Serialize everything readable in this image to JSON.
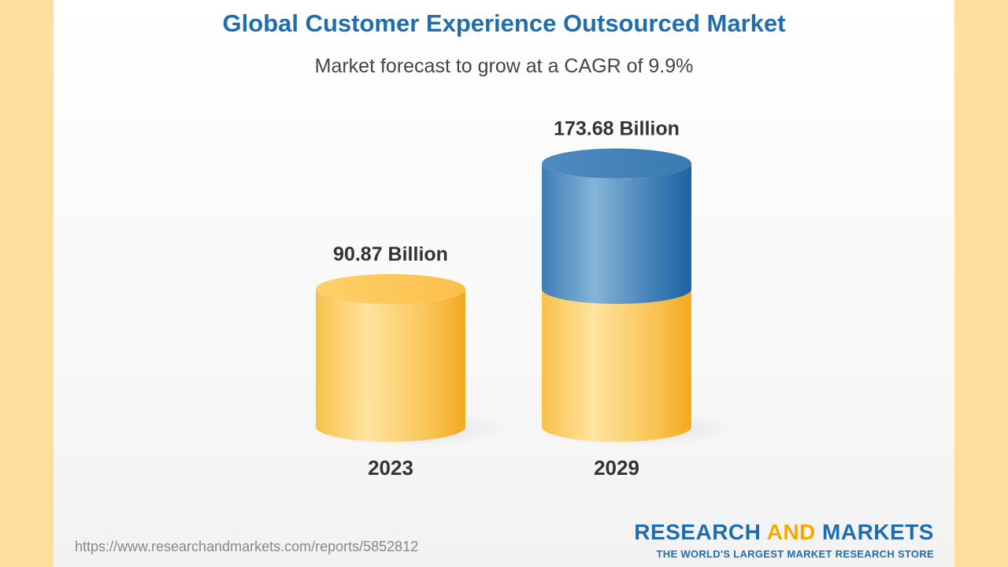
{
  "title": "Global Customer Experience Outsourced Market",
  "subtitle": "Market forecast to grow at a CAGR of 9.9%",
  "chart_data": {
    "type": "bar",
    "categories": [
      "2023",
      "2029"
    ],
    "values": [
      90.87,
      173.68
    ],
    "value_labels": [
      "90.87 Billion",
      "173.68 Billion"
    ],
    "title": "Global Customer Experience Outsourced Market",
    "subtitle": "Market forecast to grow at a CAGR of 9.9%",
    "xlabel": "",
    "ylabel": "",
    "grid": false,
    "colors": {
      "base": "#F9C44C",
      "growth": "#2E73AD"
    }
  },
  "footer": {
    "url": "https://www.researchandmarkets.com/reports/5852812",
    "brand_part1": "RESEARCH ",
    "brand_part2": "AND",
    "brand_part3": " MARKETS",
    "brand_tagline": "THE WORLD'S LARGEST MARKET RESEARCH STORE"
  },
  "colors": {
    "background": "#FFDE9E",
    "title": "#1F6DAD",
    "brand_accent": "#F6A800"
  }
}
